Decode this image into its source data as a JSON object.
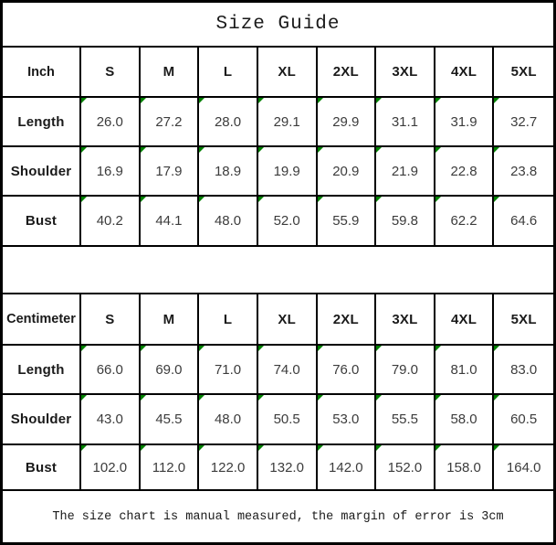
{
  "title": "Size Guide",
  "footer_note": "The size chart is manual measured, the margin of error is 3cm",
  "colors": {
    "border": "#000000",
    "cell_marker": "#008000",
    "heading_text": "#1a1a1a",
    "value_text": "#3c3c3c",
    "background": "#ffffff"
  },
  "tables": [
    {
      "unit_label": "Inch",
      "sizes": [
        "S",
        "M",
        "L",
        "XL",
        "2XL",
        "3XL",
        "4XL",
        "5XL"
      ],
      "rows": [
        {
          "label": "Length",
          "values": [
            "26.0",
            "27.2",
            "28.0",
            "29.1",
            "29.9",
            "31.1",
            "31.9",
            "32.7"
          ]
        },
        {
          "label": "Shoulder",
          "values": [
            "16.9",
            "17.9",
            "18.9",
            "19.9",
            "20.9",
            "21.9",
            "22.8",
            "23.8"
          ]
        },
        {
          "label": "Bust",
          "values": [
            "40.2",
            "44.1",
            "48.0",
            "52.0",
            "55.9",
            "59.8",
            "62.2",
            "64.6"
          ]
        }
      ]
    },
    {
      "unit_label": "Centimeter",
      "sizes": [
        "S",
        "M",
        "L",
        "XL",
        "2XL",
        "3XL",
        "4XL",
        "5XL"
      ],
      "rows": [
        {
          "label": "Length",
          "values": [
            "66.0",
            "69.0",
            "71.0",
            "74.0",
            "76.0",
            "79.0",
            "81.0",
            "83.0"
          ]
        },
        {
          "label": "Shoulder",
          "values": [
            "43.0",
            "45.5",
            "48.0",
            "50.5",
            "53.0",
            "55.5",
            "58.0",
            "60.5"
          ]
        },
        {
          "label": "Bust",
          "values": [
            "102.0",
            "112.0",
            "122.0",
            "132.0",
            "142.0",
            "152.0",
            "158.0",
            "164.0"
          ]
        }
      ]
    }
  ],
  "chart_data": [
    {
      "type": "table",
      "title": "Size Guide",
      "columns": [
        "Inch",
        "S",
        "M",
        "L",
        "XL",
        "2XL",
        "3XL",
        "4XL",
        "5XL"
      ],
      "rows": [
        [
          "Length",
          26.0,
          27.2,
          28.0,
          29.1,
          29.9,
          31.1,
          31.9,
          32.7
        ],
        [
          "Shoulder",
          16.9,
          17.9,
          18.9,
          19.9,
          20.9,
          21.9,
          22.8,
          23.8
        ],
        [
          "Bust",
          40.2,
          44.1,
          48.0,
          52.0,
          55.9,
          59.8,
          62.2,
          64.6
        ]
      ]
    },
    {
      "type": "table",
      "title": "Size Guide",
      "columns": [
        "Centimeter",
        "S",
        "M",
        "L",
        "XL",
        "2XL",
        "3XL",
        "4XL",
        "5XL"
      ],
      "rows": [
        [
          "Length",
          66.0,
          69.0,
          71.0,
          74.0,
          76.0,
          79.0,
          81.0,
          83.0
        ],
        [
          "Shoulder",
          43.0,
          45.5,
          48.0,
          50.5,
          53.0,
          55.5,
          58.0,
          60.5
        ],
        [
          "Bust",
          102.0,
          112.0,
          122.0,
          132.0,
          142.0,
          152.0,
          158.0,
          164.0
        ]
      ],
      "annotations": [
        "The size chart is manual measured, the margin of error is 3cm"
      ]
    }
  ]
}
